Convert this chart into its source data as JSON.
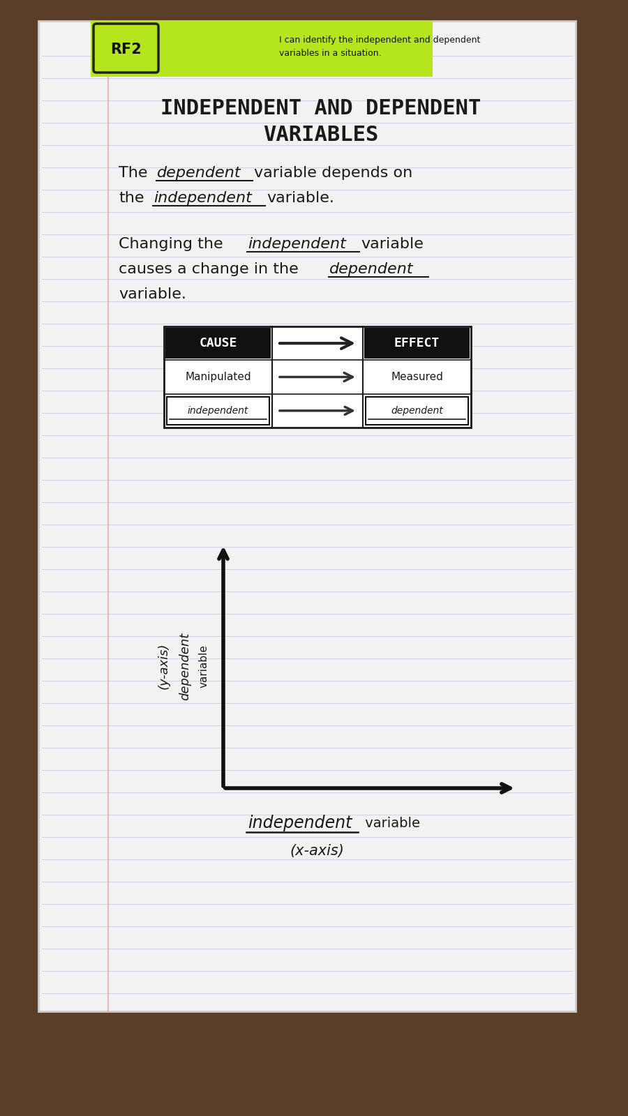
{
  "wood_bg": "#5a3e28",
  "paper_bg": "#f2f2f2",
  "line_color": "#b8bcd8",
  "margin_color": "#e8a0a0",
  "rf2_bg": "#b5e61d",
  "dark": "#1a1a1a",
  "title_line1": "INDEPENDENT AND DEPENDENT",
  "title_line2": "VARIABLES",
  "rf2_label": "RF2",
  "rf2_text_line1": "I can identify the independent and dependent",
  "rf2_text_line2": "variables in a situation."
}
